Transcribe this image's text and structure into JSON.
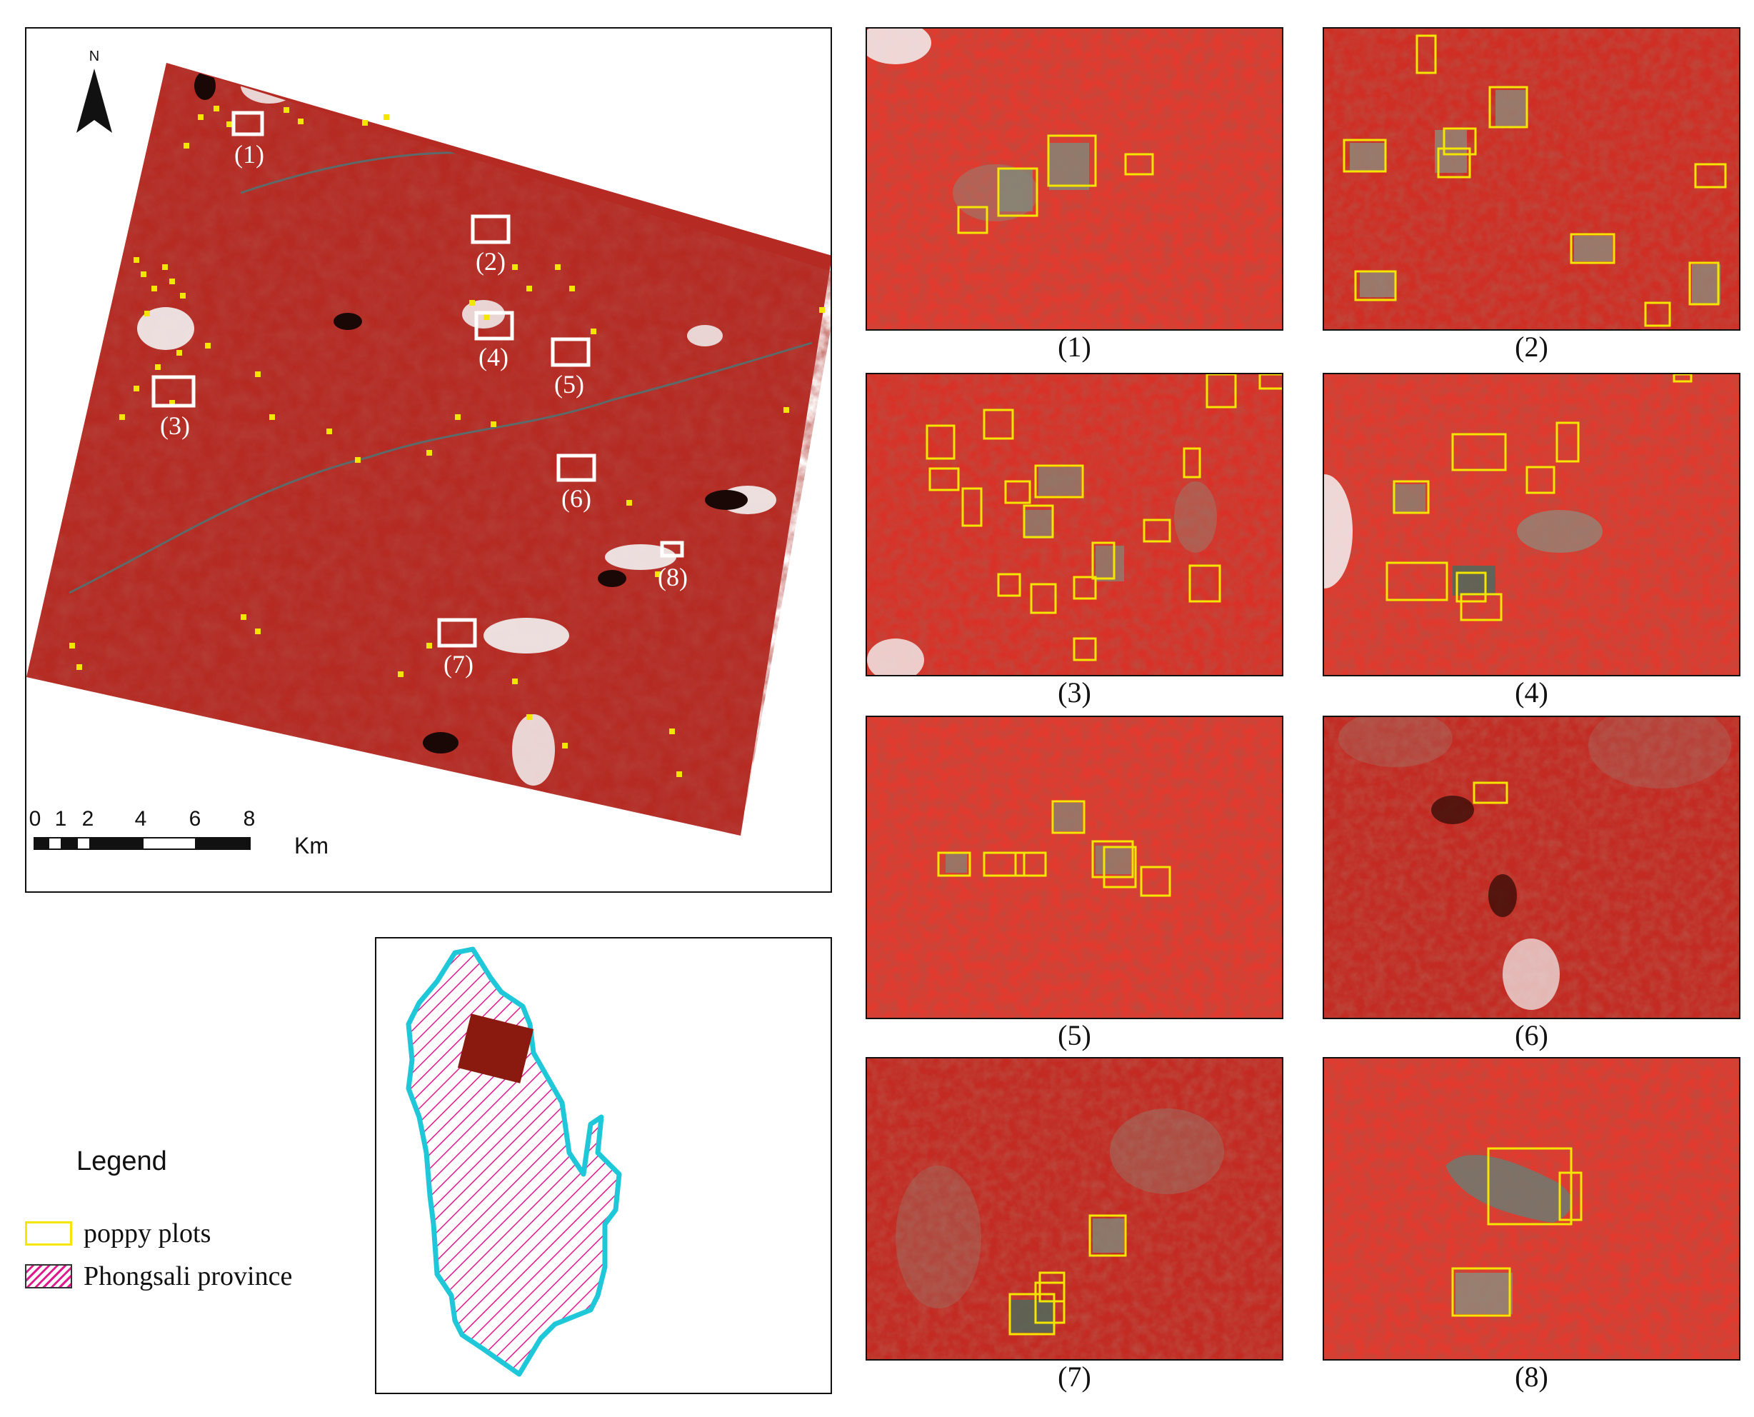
{
  "north_arrow": {
    "letter": "N"
  },
  "scale_bar": {
    "ticks": [
      "0",
      "1",
      "2",
      "4",
      "6",
      "8"
    ],
    "unit": "Km"
  },
  "map_labels": [
    "(1)",
    "(2)",
    "(3)",
    "(4)",
    "(5)",
    "(6)",
    "(7)",
    "(8)"
  ],
  "legend": {
    "title": "Legend",
    "items": [
      {
        "label": "poppy plots",
        "color": "#f5e600",
        "style": "outline"
      },
      {
        "label": "Phongsali province",
        "color": "#e0198f",
        "style": "hatch"
      }
    ]
  },
  "locator": {
    "fill_color": "#e0198f",
    "border_color": "#1fc8d8",
    "study_area_color": "#8a1a10"
  },
  "panels": [
    {
      "caption": "(1)"
    },
    {
      "caption": "(2)"
    },
    {
      "caption": "(3)"
    },
    {
      "caption": "(4)"
    },
    {
      "caption": "(5)"
    },
    {
      "caption": "(6)"
    },
    {
      "caption": "(7)"
    },
    {
      "caption": "(8)"
    }
  ],
  "colors": {
    "vegetation": "#d8342a",
    "plot_outline": "#f5e600",
    "box_outline": "#ffffff",
    "cloud": "#f2f2f2"
  }
}
